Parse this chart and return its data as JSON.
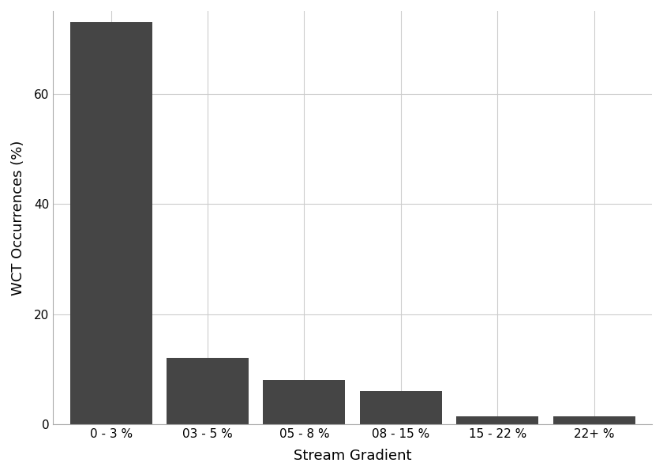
{
  "categories": [
    "0 - 3 %",
    "03 - 5 %",
    "05 - 8 %",
    "08 - 15 %",
    "15 - 22 %",
    "22+ %"
  ],
  "values": [
    73.0,
    12.0,
    8.0,
    6.0,
    1.5,
    1.5
  ],
  "bar_color": "#454545",
  "xlabel": "Stream Gradient",
  "ylabel": "WCT Occurrences (%)",
  "ylim": [
    0,
    75
  ],
  "yticks": [
    0,
    20,
    40,
    60
  ],
  "background_color": "#ffffff",
  "grid_color": "#cccccc",
  "axis_label_fontsize": 13,
  "tick_fontsize": 11,
  "bar_width": 0.85
}
